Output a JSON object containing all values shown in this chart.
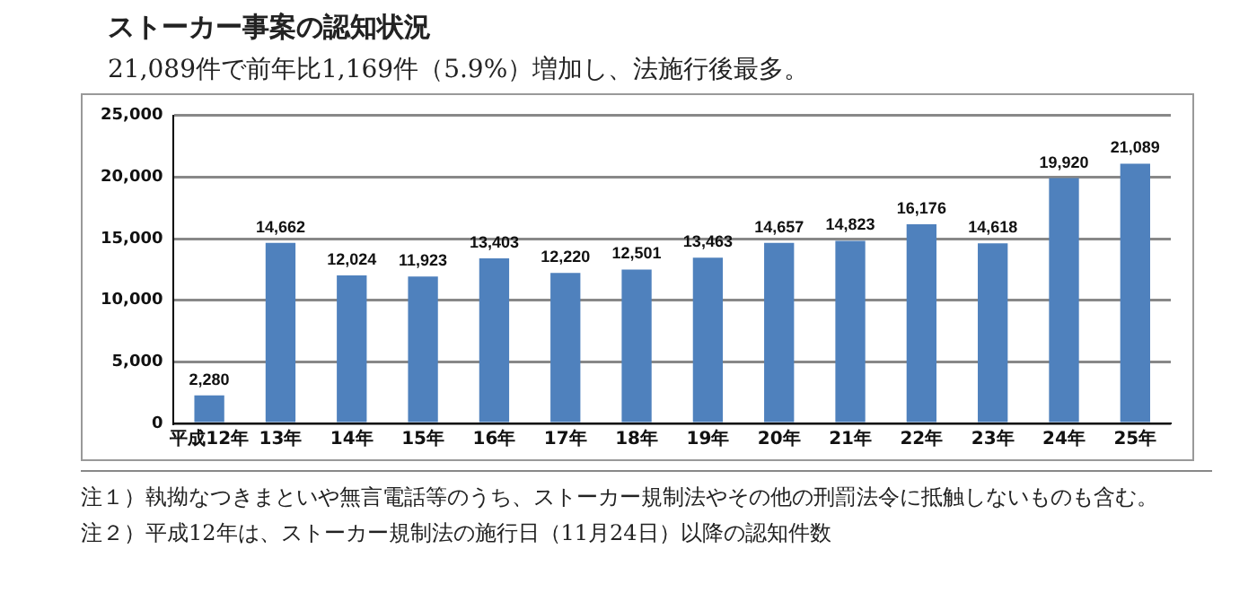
{
  "chart_data": {
    "type": "bar",
    "title": "ストーカー事案の認知状況",
    "subtitle": "21,089件で前年比1,169件（5.9%）増加し、法施行後最多。",
    "categories": [
      "平成12年",
      "13年",
      "14年",
      "15年",
      "16年",
      "17年",
      "18年",
      "19年",
      "20年",
      "21年",
      "22年",
      "23年",
      "24年",
      "25年"
    ],
    "values": [
      2280,
      14662,
      12024,
      11923,
      13403,
      12220,
      12501,
      13463,
      14657,
      14823,
      16176,
      14618,
      19920,
      21089
    ],
    "color": "#4f81bd",
    "ylim": [
      0,
      25000
    ],
    "yticks": [
      {
        "value": 0,
        "label": "0"
      },
      {
        "value": 5000,
        "label": "5,000"
      },
      {
        "value": 10000,
        "label": "10,000"
      },
      {
        "value": 15000,
        "label": "15,000"
      },
      {
        "value": 20000,
        "label": "20,000"
      },
      {
        "value": 25000,
        "label": "25,000"
      }
    ],
    "grid": "y",
    "value_labels": [
      "2,280",
      "14,662",
      "12,024",
      "11,923",
      "13,403",
      "12,220",
      "12,501",
      "13,463",
      "14,657",
      "14,823",
      "16,176",
      "14,618",
      "19,920",
      "21,089"
    ],
    "annotations": [
      "注１）執拗なつきまといや無言電話等のうち、ストーカー規制法やその他の刑罰法令に抵触しないものも含む。",
      "注２）平成12年は、ストーカー規制法の施行日（11月24日）以降の認知件数"
    ]
  }
}
